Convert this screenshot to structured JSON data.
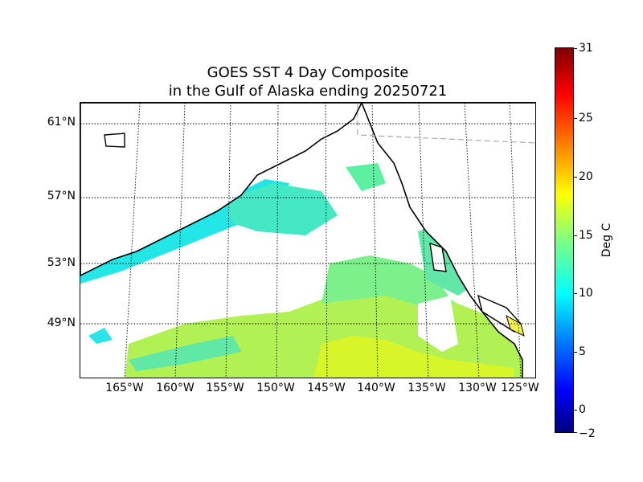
{
  "title": {
    "line1": "GOES SST 4 Day Composite",
    "line2": "in the Gulf of Alaska ending 20250721"
  },
  "map": {
    "latitude_labels": [
      "61°N",
      "57°N",
      "53°N",
      "49°N"
    ],
    "longitude_labels": [
      "165°W",
      "160°W",
      "155°W",
      "150°W",
      "145°W",
      "140°W",
      "135°W",
      "130°W",
      "125°W"
    ],
    "sst_colormap": "jet",
    "land_color": "#ffffff",
    "coastline_color": "#000000"
  },
  "colorbar": {
    "label": "Deg C",
    "ticks": [
      "31",
      "25",
      "20",
      "15",
      "10",
      "5",
      "0",
      "−2"
    ],
    "min": -2,
    "max": 31
  }
}
